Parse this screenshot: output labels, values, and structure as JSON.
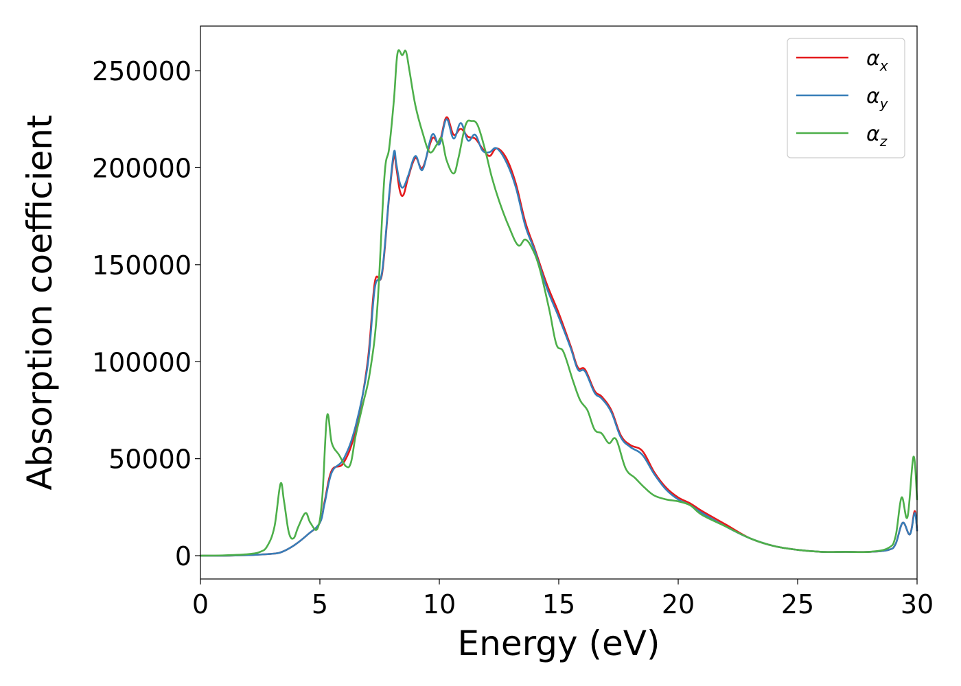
{
  "chart_data": {
    "type": "line",
    "title": "",
    "xlabel": "Energy (eV)",
    "ylabel": "Absorption coefficient",
    "xlim": [
      0,
      30
    ],
    "ylim": [
      -12000,
      273000
    ],
    "xticks": [
      0,
      5,
      10,
      15,
      20,
      25,
      30
    ],
    "xtick_labels": [
      "0",
      "5",
      "10",
      "15",
      "20",
      "25",
      "30"
    ],
    "yticks": [
      0,
      50000,
      100000,
      150000,
      200000,
      250000
    ],
    "ytick_labels": [
      "0",
      "50000",
      "100000",
      "150000",
      "200000",
      "250000"
    ],
    "grid": false,
    "legend_position": "top-right",
    "series": [
      {
        "name": "αx",
        "symbol": "α",
        "subscript": "x",
        "color": "#e41a1c",
        "x": [
          0,
          1,
          2,
          2.5,
          3,
          3.3,
          3.6,
          4,
          4.5,
          5,
          5.2,
          5.5,
          6,
          6.5,
          7,
          7.3,
          7.6,
          7.9,
          8.1,
          8.2,
          8.35,
          8.5,
          8.7,
          9,
          9.3,
          9.7,
          10,
          10.3,
          10.6,
          10.9,
          11.2,
          11.5,
          11.8,
          12.1,
          12.4,
          12.8,
          13.2,
          13.6,
          14,
          14.5,
          15,
          15.5,
          15.8,
          16.1,
          16.5,
          16.8,
          17.2,
          17.6,
          18,
          18.5,
          19,
          19.5,
          20,
          20.5,
          21,
          22,
          23,
          24,
          25,
          26,
          27,
          28,
          28.8,
          29.1,
          29.4,
          29.7,
          29.9,
          30
        ],
        "y": [
          0,
          0,
          300,
          600,
          1000,
          1500,
          3000,
          6000,
          11000,
          17000,
          28000,
          44000,
          48000,
          65000,
          100000,
          141000,
          145000,
          185000,
          206000,
          200000,
          188000,
          186000,
          195000,
          205000,
          200000,
          215000,
          213000,
          226000,
          217000,
          220000,
          216000,
          215000,
          210000,
          206000,
          210000,
          205000,
          192000,
          172000,
          158000,
          140000,
          125000,
          108000,
          97000,
          96000,
          85000,
          82000,
          75000,
          62000,
          57000,
          54000,
          43000,
          35000,
          30000,
          27000,
          23000,
          16000,
          9000,
          5000,
          3000,
          2000,
          2000,
          2000,
          3000,
          6000,
          17000,
          11000,
          23000,
          13000
        ]
      },
      {
        "name": "αy",
        "symbol": "α",
        "subscript": "y",
        "color": "#377eb8",
        "x": [
          0,
          1,
          2,
          2.5,
          3,
          3.3,
          3.6,
          4,
          4.5,
          5,
          5.2,
          5.5,
          6,
          6.5,
          7,
          7.3,
          7.6,
          7.9,
          8.1,
          8.2,
          8.35,
          8.5,
          8.7,
          9,
          9.3,
          9.7,
          10,
          10.3,
          10.6,
          10.9,
          11.2,
          11.5,
          11.8,
          12.1,
          12.4,
          12.8,
          13.2,
          13.6,
          14,
          14.5,
          15,
          15.5,
          15.8,
          16.1,
          16.5,
          16.8,
          17.2,
          17.6,
          18,
          18.5,
          19,
          19.5,
          20,
          20.5,
          21,
          22,
          23,
          24,
          25,
          26,
          27,
          28,
          28.8,
          29.1,
          29.4,
          29.7,
          29.9,
          30
        ],
        "y": [
          0,
          0,
          300,
          600,
          1000,
          1500,
          3000,
          6000,
          11000,
          17000,
          27000,
          43000,
          50000,
          67000,
          98000,
          138000,
          146000,
          186000,
          208000,
          202000,
          192000,
          190000,
          196000,
          206000,
          199000,
          217000,
          212000,
          225000,
          215000,
          223000,
          214000,
          217000,
          209000,
          208000,
          210000,
          203000,
          190000,
          170000,
          157000,
          138000,
          123000,
          107000,
          96000,
          95000,
          84000,
          81000,
          74000,
          61000,
          56000,
          52000,
          42000,
          34000,
          29000,
          26000,
          22000,
          15000,
          9000,
          5000,
          3000,
          2000,
          2000,
          2000,
          3000,
          6000,
          17000,
          11000,
          22000,
          13000
        ]
      },
      {
        "name": "αz",
        "symbol": "α",
        "subscript": "z",
        "color": "#4daf4a",
        "x": [
          0,
          1,
          2,
          2.5,
          2.8,
          3.1,
          3.35,
          3.5,
          3.7,
          3.9,
          4.1,
          4.4,
          4.6,
          4.9,
          5.1,
          5.3,
          5.5,
          5.8,
          6.1,
          6.3,
          6.5,
          6.8,
          7.1,
          7.4,
          7.7,
          7.9,
          8.1,
          8.25,
          8.45,
          8.6,
          8.75,
          9,
          9.3,
          9.6,
          9.9,
          10.1,
          10.3,
          10.6,
          10.8,
          11.1,
          11.35,
          11.6,
          11.9,
          12.2,
          12.5,
          12.9,
          13.3,
          13.6,
          13.9,
          14.2,
          14.6,
          14.9,
          15.2,
          15.6,
          15.9,
          16.2,
          16.5,
          16.8,
          17.1,
          17.4,
          17.8,
          18.2,
          18.6,
          19,
          19.5,
          20,
          20.5,
          21,
          22,
          23,
          24,
          25,
          26,
          27,
          28,
          28.8,
          29.1,
          29.35,
          29.6,
          29.85,
          30
        ],
        "y": [
          0,
          200,
          800,
          2000,
          5000,
          15000,
          37000,
          28000,
          12000,
          9000,
          15000,
          22000,
          17000,
          14000,
          30000,
          72000,
          58000,
          52000,
          46000,
          48000,
          62000,
          78000,
          95000,
          127000,
          195000,
          210000,
          235000,
          259000,
          258000,
          260000,
          250000,
          232000,
          218000,
          208000,
          212000,
          215000,
          204000,
          197000,
          205000,
          222000,
          224000,
          222000,
          210000,
          195000,
          183000,
          170000,
          160000,
          163000,
          158000,
          148000,
          127000,
          109000,
          105000,
          90000,
          80000,
          75000,
          65000,
          63000,
          58000,
          60000,
          45000,
          40000,
          35000,
          31000,
          29000,
          28000,
          26000,
          21000,
          15000,
          9000,
          5000,
          3000,
          2000,
          2000,
          2000,
          4000,
          10000,
          30000,
          20000,
          51000,
          29000
        ]
      }
    ]
  }
}
